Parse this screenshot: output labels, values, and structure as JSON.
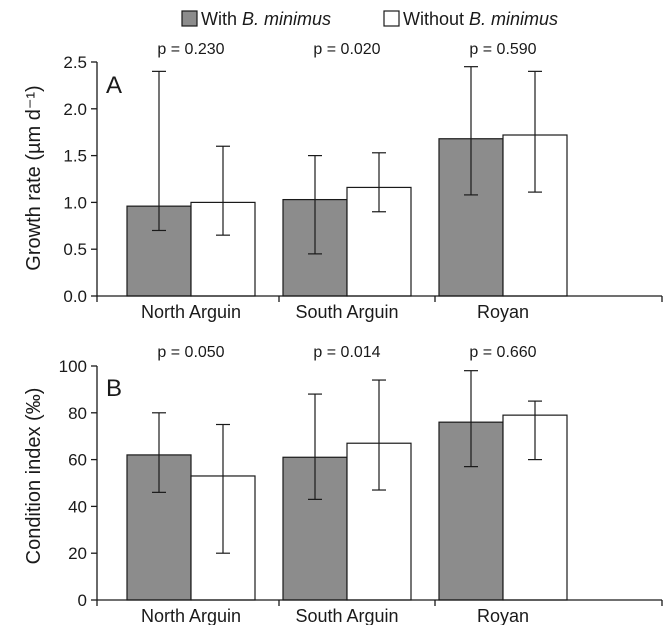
{
  "legend": {
    "entries": [
      {
        "prefix": "With ",
        "italic": "B. minimus",
        "color": "#8c8c8c"
      },
      {
        "prefix": "Without ",
        "italic": "B. minimus",
        "color": "#ffffff"
      }
    ]
  },
  "chart_data": [
    {
      "type": "bar",
      "panel_label": "A",
      "title": "",
      "xlabel": "",
      "ylabel": "Growth rate (µm d⁻¹)",
      "ylim": [
        0,
        2.5
      ],
      "yticks": [
        "0.0",
        "0.5",
        "1.0",
        "1.5",
        "2.0",
        "2.5"
      ],
      "grid": false,
      "categories": [
        "North Arguin",
        "South Arguin",
        "Royan"
      ],
      "p_values": [
        "p = 0.230",
        "p = 0.020",
        "p = 0.590"
      ],
      "series": [
        {
          "name": "With B. minimus",
          "color": "#8c8c8c",
          "values": [
            0.96,
            1.03,
            1.68
          ],
          "error_low": [
            0.7,
            0.45,
            1.08
          ],
          "error_high": [
            2.4,
            1.5,
            2.45
          ]
        },
        {
          "name": "Without B. minimus",
          "color": "#ffffff",
          "values": [
            1.0,
            1.16,
            1.72
          ],
          "error_low": [
            0.65,
            0.9,
            1.11
          ],
          "error_high": [
            1.6,
            1.53,
            2.4
          ]
        }
      ]
    },
    {
      "type": "bar",
      "panel_label": "B",
      "title": "",
      "xlabel": "",
      "ylabel": "Condition index (‰)",
      "ylim": [
        0,
        100
      ],
      "yticks": [
        "0",
        "20",
        "40",
        "60",
        "80",
        "100"
      ],
      "grid": false,
      "categories": [
        "North Arguin",
        "South Arguin",
        "Royan"
      ],
      "p_values": [
        "p = 0.050",
        "p = 0.014",
        "p = 0.660"
      ],
      "series": [
        {
          "name": "With B. minimus",
          "color": "#8c8c8c",
          "values": [
            62,
            61,
            76
          ],
          "error_low": [
            46,
            43,
            57
          ],
          "error_high": [
            80,
            88,
            98
          ]
        },
        {
          "name": "Without B. minimus",
          "color": "#ffffff",
          "values": [
            53,
            67,
            79
          ],
          "error_low": [
            20,
            47,
            60
          ],
          "error_high": [
            75,
            94,
            85
          ]
        }
      ]
    }
  ]
}
